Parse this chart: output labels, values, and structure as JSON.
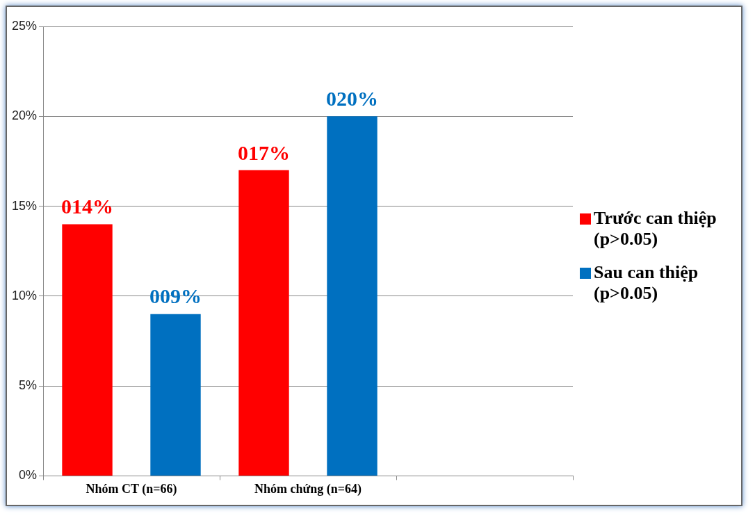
{
  "chart_data": {
    "type": "bar",
    "categories": [
      "Nhóm CT (n=66)",
      "Nhóm chứng (n=64)",
      null
    ],
    "series": [
      {
        "name": "Trước can thiệp (p>0.05)",
        "color": "#ff0000",
        "values": [
          14,
          17,
          null
        ],
        "value_labels": [
          "014%",
          "017%",
          null
        ]
      },
      {
        "name": "Sau can thiệp (p>0.05)",
        "color": "#0070c0",
        "values": [
          9,
          20,
          null
        ],
        "value_labels": [
          "009%",
          "020%",
          null
        ]
      }
    ],
    "ylim": [
      0,
      25
    ],
    "yticks": [
      {
        "value": 0,
        "label": "0%"
      },
      {
        "value": 5,
        "label": "5%"
      },
      {
        "value": 10,
        "label": "10%"
      },
      {
        "value": 15,
        "label": "15%"
      },
      {
        "value": 20,
        "label": "20%"
      },
      {
        "value": 25,
        "label": "25%"
      }
    ],
    "grid": "y",
    "legend": "right"
  }
}
